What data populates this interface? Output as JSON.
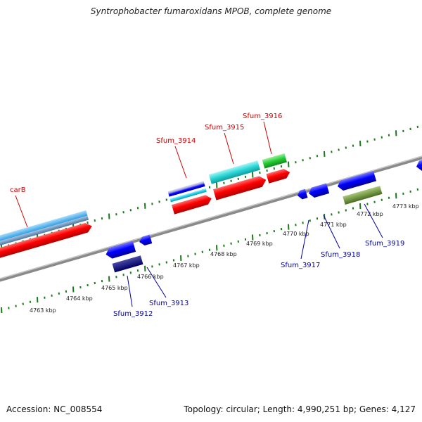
{
  "title": "Syntrophobacter fumaroxidans MPOB, complete genome",
  "footer": {
    "accession": "Accession: NC_008554",
    "stats": "Topology: circular; Length: 4,990,251 bp; Genes: 4,127"
  },
  "colors": {
    "forward_label": "#cc0000",
    "reverse_label": "#000099",
    "backbone": "#8a8a8a",
    "tick": "#1a7a1a"
  },
  "ticks": [
    "4763 kbp",
    "4764 kbp",
    "4765 kbp",
    "4766 kbp",
    "4767 kbp",
    "4768 kbp",
    "4769 kbp",
    "4770 kbp",
    "4771 kbp",
    "4772 kbp",
    "4773 kbp"
  ],
  "genes_forward": [
    {
      "name": "carB",
      "color": "#ff0000"
    },
    {
      "name": "Sfum_3914",
      "color": "#ff0000"
    },
    {
      "name": "Sfum_3915",
      "color": "#ff0000"
    },
    {
      "name": "Sfum_3916",
      "color": "#ff0000"
    }
  ],
  "genes_reverse": [
    {
      "name": "Sfum_3912",
      "color": "#0000ff"
    },
    {
      "name": "Sfum_3913",
      "color": "#0000ff"
    },
    {
      "name": "Sfum_3917",
      "color": "#0000ff"
    },
    {
      "name": "Sfum_3918",
      "color": "#0000ff"
    },
    {
      "name": "Sfum_3919",
      "color": "#0000ff"
    }
  ]
}
